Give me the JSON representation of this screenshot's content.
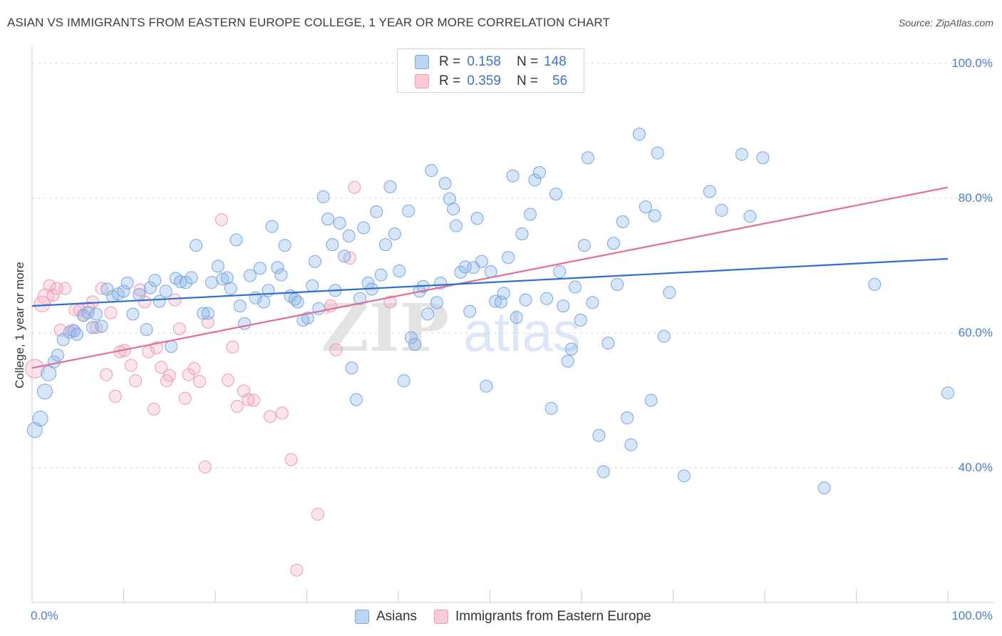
{
  "header": {
    "title": "ASIAN VS IMMIGRANTS FROM EASTERN EUROPE COLLEGE, 1 YEAR OR MORE CORRELATION CHART",
    "source": "Source: ZipAtlas.com"
  },
  "legend": {
    "rows": [
      {
        "r_label": "R =",
        "r_value": "0.158",
        "n_label": "N =",
        "n_value": "148",
        "color": "#a9c8f2"
      },
      {
        "r_label": "R =",
        "r_value": "0.359",
        "n_label": "N =",
        "n_value": "56",
        "color": "#f6b8cb"
      }
    ],
    "bottom": [
      {
        "label": "Asians",
        "color": "#a9c8f2"
      },
      {
        "label": "Immigrants from Eastern Europe",
        "color": "#f6b8cb"
      }
    ]
  },
  "watermark": {
    "zip": "ZIP",
    "atlas": "atlas"
  },
  "colors": {
    "blue_fill": "rgba(138,180,232,0.35)",
    "blue_stroke": "#7aa6e0",
    "blue_line": "#2f6fcb",
    "pink_fill": "rgba(244,164,190,0.30)",
    "pink_stroke": "#eb9ab4",
    "pink_line": "#e26d96",
    "axis_text": "#4a7cc7",
    "grid": "#d9d9d9"
  },
  "chart_data": {
    "type": "scatter",
    "title": "ASIAN VS IMMIGRANTS FROM EASTERN EUROPE COLLEGE, 1 YEAR OR MORE CORRELATION CHART",
    "xlabel": "",
    "ylabel": "College, 1 year or more",
    "xlim": [
      0,
      100
    ],
    "ylim": [
      20,
      102
    ],
    "x_tick_labels": [
      "0.0%",
      "100.0%"
    ],
    "y_tick_values": [
      40,
      60,
      80,
      100
    ],
    "y_tick_labels": [
      "40.0%",
      "60.0%",
      "80.0%",
      "100.0%"
    ],
    "grid": true,
    "legend_position": "top-center",
    "series": [
      {
        "name": "Asians",
        "trend": {
          "x": [
            0,
            100
          ],
          "y": [
            64.0,
            71.0
          ]
        },
        "points": [
          [
            0.3,
            45.6
          ],
          [
            0.9,
            47.3
          ],
          [
            1.4,
            51.3
          ],
          [
            1.8,
            54.0
          ],
          [
            2.4,
            55.7
          ],
          [
            2.8,
            56.7
          ],
          [
            3.4,
            59.0
          ],
          [
            4.1,
            60.1
          ],
          [
            4.6,
            60.3
          ],
          [
            4.9,
            59.8
          ],
          [
            5.6,
            62.6
          ],
          [
            6.1,
            63.0
          ],
          [
            6.6,
            60.8
          ],
          [
            7.0,
            62.8
          ],
          [
            7.6,
            61.0
          ],
          [
            8.2,
            66.5
          ],
          [
            8.8,
            65.4
          ],
          [
            9.4,
            65.8
          ],
          [
            10.0,
            66.2
          ],
          [
            10.4,
            67.4
          ],
          [
            11.0,
            62.8
          ],
          [
            11.7,
            65.7
          ],
          [
            12.5,
            60.5
          ],
          [
            12.9,
            66.7
          ],
          [
            13.4,
            67.8
          ],
          [
            13.9,
            64.7
          ],
          [
            14.6,
            66.2
          ],
          [
            15.2,
            58.0
          ],
          [
            15.7,
            68.1
          ],
          [
            16.2,
            67.6
          ],
          [
            16.8,
            67.5
          ],
          [
            17.4,
            68.2
          ],
          [
            17.9,
            73.0
          ],
          [
            18.7,
            62.9
          ],
          [
            19.2,
            62.9
          ],
          [
            19.6,
            67.5
          ],
          [
            20.3,
            69.9
          ],
          [
            20.8,
            68.0
          ],
          [
            21.3,
            68.2
          ],
          [
            21.7,
            66.6
          ],
          [
            22.3,
            73.8
          ],
          [
            22.7,
            64.0
          ],
          [
            23.2,
            61.4
          ],
          [
            23.8,
            68.5
          ],
          [
            24.4,
            65.2
          ],
          [
            24.9,
            69.6
          ],
          [
            25.3,
            64.6
          ],
          [
            25.8,
            66.3
          ],
          [
            26.2,
            75.8
          ],
          [
            26.8,
            69.7
          ],
          [
            27.2,
            68.6
          ],
          [
            27.6,
            73.0
          ],
          [
            28.2,
            65.5
          ],
          [
            28.7,
            65.0
          ],
          [
            29.0,
            64.6
          ],
          [
            29.6,
            61.9
          ],
          [
            30.1,
            62.2
          ],
          [
            30.6,
            67.0
          ],
          [
            30.9,
            70.6
          ],
          [
            31.3,
            63.6
          ],
          [
            31.8,
            80.2
          ],
          [
            32.3,
            76.9
          ],
          [
            32.8,
            73.1
          ],
          [
            33.1,
            66.3
          ],
          [
            33.6,
            76.3
          ],
          [
            34.1,
            71.4
          ],
          [
            34.6,
            74.4
          ],
          [
            34.9,
            54.8
          ],
          [
            35.4,
            50.1
          ],
          [
            35.8,
            65.1
          ],
          [
            36.2,
            75.6
          ],
          [
            36.7,
            67.4
          ],
          [
            37.1,
            66.5
          ],
          [
            37.6,
            78.0
          ],
          [
            38.1,
            68.6
          ],
          [
            38.6,
            73.1
          ],
          [
            39.1,
            81.7
          ],
          [
            39.6,
            74.7
          ],
          [
            40.1,
            69.2
          ],
          [
            40.6,
            52.9
          ],
          [
            41.1,
            78.1
          ],
          [
            41.4,
            59.3
          ],
          [
            41.8,
            58.3
          ],
          [
            42.3,
            66.2
          ],
          [
            42.7,
            66.9
          ],
          [
            43.2,
            62.8
          ],
          [
            43.6,
            84.1
          ],
          [
            44.2,
            64.5
          ],
          [
            44.6,
            67.4
          ],
          [
            45.1,
            82.2
          ],
          [
            45.6,
            79.9
          ],
          [
            46.0,
            78.4
          ],
          [
            46.3,
            75.9
          ],
          [
            46.8,
            69.0
          ],
          [
            47.3,
            69.8
          ],
          [
            47.8,
            63.2
          ],
          [
            48.2,
            69.7
          ],
          [
            48.6,
            77.0
          ],
          [
            49.1,
            70.6
          ],
          [
            49.6,
            52.1
          ],
          [
            50.1,
            69.1
          ],
          [
            50.6,
            64.7
          ],
          [
            51.2,
            64.6
          ],
          [
            51.5,
            65.9
          ],
          [
            52.0,
            71.2
          ],
          [
            52.5,
            83.3
          ],
          [
            52.9,
            62.3
          ],
          [
            53.5,
            74.7
          ],
          [
            53.9,
            64.9
          ],
          [
            54.4,
            77.6
          ],
          [
            54.9,
            82.7
          ],
          [
            55.4,
            83.8
          ],
          [
            56.2,
            65.1
          ],
          [
            56.7,
            48.8
          ],
          [
            57.2,
            80.6
          ],
          [
            57.6,
            69.1
          ],
          [
            58.0,
            64.0
          ],
          [
            58.5,
            55.8
          ],
          [
            58.9,
            57.6
          ],
          [
            59.3,
            66.8
          ],
          [
            59.9,
            61.9
          ],
          [
            60.3,
            73.0
          ],
          [
            60.7,
            86.0
          ],
          [
            61.2,
            64.5
          ],
          [
            61.9,
            44.8
          ],
          [
            62.4,
            39.4
          ],
          [
            62.9,
            58.5
          ],
          [
            63.5,
            73.3
          ],
          [
            63.9,
            67.2
          ],
          [
            64.5,
            76.5
          ],
          [
            65.0,
            47.4
          ],
          [
            65.4,
            43.4
          ],
          [
            66.3,
            89.5
          ],
          [
            67.0,
            78.7
          ],
          [
            67.6,
            50.0
          ],
          [
            68.0,
            77.4
          ],
          [
            68.3,
            86.7
          ],
          [
            69.0,
            59.5
          ],
          [
            69.6,
            66.0
          ],
          [
            71.2,
            38.8
          ],
          [
            74.0,
            81.0
          ],
          [
            75.3,
            78.2
          ],
          [
            77.5,
            86.5
          ],
          [
            78.4,
            77.3
          ],
          [
            79.8,
            86.0
          ],
          [
            86.5,
            37.0
          ],
          [
            92.0,
            67.2
          ],
          [
            100.0,
            51.1
          ]
        ]
      },
      {
        "name": "Immigrants from Eastern Europe",
        "trend": {
          "x": [
            0,
            100
          ],
          "y": [
            54.8,
            81.6
          ]
        },
        "points": [
          [
            0.3,
            54.7
          ],
          [
            1.1,
            64.3
          ],
          [
            1.5,
            65.4
          ],
          [
            1.9,
            67.0
          ],
          [
            2.3,
            65.6
          ],
          [
            2.7,
            66.6
          ],
          [
            3.1,
            60.4
          ],
          [
            3.6,
            66.6
          ],
          [
            4.4,
            60.4
          ],
          [
            4.7,
            63.4
          ],
          [
            5.2,
            63.4
          ],
          [
            5.6,
            62.6
          ],
          [
            6.2,
            63.7
          ],
          [
            6.6,
            64.6
          ],
          [
            7.0,
            60.8
          ],
          [
            7.6,
            66.6
          ],
          [
            8.1,
            53.8
          ],
          [
            8.6,
            63.0
          ],
          [
            9.1,
            50.6
          ],
          [
            9.6,
            57.2
          ],
          [
            10.1,
            57.4
          ],
          [
            10.8,
            55.2
          ],
          [
            11.3,
            52.9
          ],
          [
            11.8,
            66.4
          ],
          [
            12.3,
            64.6
          ],
          [
            12.7,
            57.2
          ],
          [
            13.3,
            48.7
          ],
          [
            13.6,
            57.8
          ],
          [
            14.1,
            54.9
          ],
          [
            14.7,
            52.9
          ],
          [
            15.0,
            53.7
          ],
          [
            15.6,
            64.9
          ],
          [
            16.1,
            60.6
          ],
          [
            16.7,
            50.3
          ],
          [
            17.1,
            53.8
          ],
          [
            17.7,
            54.7
          ],
          [
            18.3,
            52.8
          ],
          [
            18.9,
            40.1
          ],
          [
            19.2,
            61.6
          ],
          [
            20.7,
            76.8
          ],
          [
            21.4,
            53.0
          ],
          [
            21.9,
            57.9
          ],
          [
            22.4,
            49.1
          ],
          [
            23.1,
            51.4
          ],
          [
            23.6,
            50.1
          ],
          [
            24.2,
            50.0
          ],
          [
            26.0,
            47.6
          ],
          [
            27.3,
            48.1
          ],
          [
            28.3,
            41.2
          ],
          [
            28.9,
            24.8
          ],
          [
            31.2,
            33.1
          ],
          [
            32.6,
            64.0
          ],
          [
            33.2,
            57.5
          ],
          [
            34.7,
            71.1
          ],
          [
            35.2,
            81.6
          ],
          [
            39.1,
            64.6
          ]
        ]
      }
    ]
  }
}
